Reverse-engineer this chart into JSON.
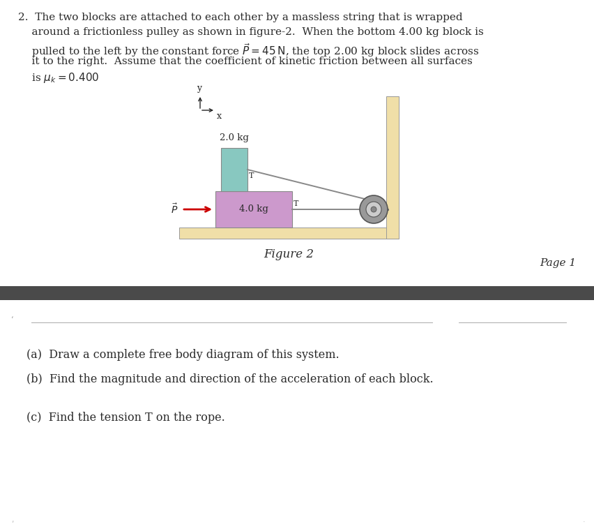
{
  "bg_color": "#ffffff",
  "dark_bar_color": "#4a4a4a",
  "floor_color": "#f0dfa8",
  "wall_color": "#f0dfa8",
  "block4_color": "#cc99cc",
  "block2_color": "#88c8c0",
  "pulley_outer_color": "#999999",
  "pulley_inner_color": "#bbbbbb",
  "rope_color": "#888888",
  "arrow_color": "#cc0000",
  "text_color": "#2a2a2a",
  "axis_color": "#222222",
  "line1": "2.  The two blocks are attached to each other by a massless string that is wrapped",
  "line2": "    around a frictionless pulley as shown in figure-2.  When the bottom 4.00 kg block is",
  "line3": "    pulled to the left by the constant force $\\vec{P}=45\\,\\mathrm{N}$, the top 2.00 kg block slides across",
  "line4": "    it to the right.  Assume that the coefficient of kinetic friction between all surfaces",
  "line5": "    is $\\mu_k=0.400$",
  "fig_caption": "Figure 2",
  "page_label": "Page 1",
  "qa": "(a)  Draw a complete free body diagram of this system.",
  "qb": "(b)  Find the magnitude and direction of the acceleration of each block.",
  "qc": "(c)  Find the tension T on the rope."
}
